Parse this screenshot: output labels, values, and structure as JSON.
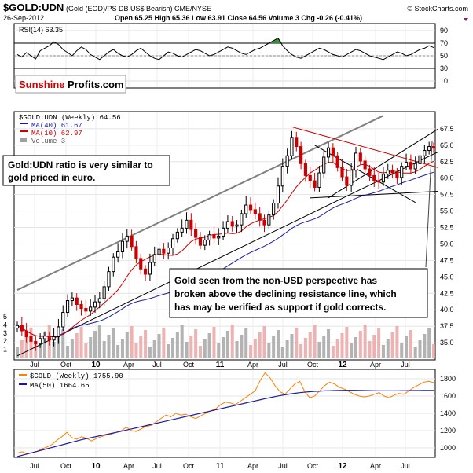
{
  "header": {
    "symbol": "$GOLD:UDN",
    "description": "(Gold (EOD)/PS DB US$ Bearish) CME/NYSE",
    "date": "26-Sep-2012",
    "ohlc": "Open 65.25  High 65.36  Low 63.91  Close 64.56  Volume 3  Chg -0.26 (-0.41%)",
    "watermark": "© StockCharts.com",
    "logo_part1": "Sunshine",
    "logo_part2": "Profits.com"
  },
  "annotations": {
    "ratio_note_line1": "Gold:UDN ratio is very similar to",
    "ratio_note_line2": "gold priced in euro.",
    "breakout_note_line1": "Gold seen from the non-USD perspective has",
    "breakout_note_line2": "broken above the declining resistance line, which",
    "breakout_note_line3": "has may be verified as support if gold corrects."
  },
  "x_axis_labels": [
    "Jul",
    "Oct",
    "10",
    "Apr",
    "Jul",
    "Oct",
    "11",
    "Apr",
    "Jul",
    "Oct",
    "12",
    "Apr",
    "Jul"
  ],
  "chart_data": [
    {
      "type": "line",
      "panel": "RSI",
      "legend": "RSI(14) 63.35",
      "ylim": [
        0,
        100
      ],
      "y_ticks": [
        10,
        30,
        50,
        70,
        90
      ],
      "reference_lines": [
        30,
        70
      ],
      "color": "#000000",
      "overbought_fill": "#3c8c3c",
      "values": [
        52,
        48,
        55,
        50,
        45,
        58,
        62,
        66,
        72,
        68,
        60,
        55,
        50,
        58,
        64,
        60,
        52,
        48,
        44,
        50,
        56,
        60,
        54,
        50,
        48,
        52,
        58,
        62,
        56,
        50,
        46,
        44,
        50,
        56,
        54,
        50,
        48,
        52,
        56,
        60,
        58,
        54,
        50,
        52,
        56,
        60,
        64,
        62,
        58,
        54,
        52,
        56,
        60,
        62,
        66,
        70,
        74,
        78,
        66,
        58,
        52,
        48,
        46,
        50,
        54,
        58,
        62,
        60,
        56,
        52,
        50,
        48,
        52,
        56,
        60,
        58,
        54,
        50,
        48,
        46,
        44,
        48,
        52,
        56,
        54,
        50,
        52,
        56,
        60,
        62,
        66,
        63
      ]
    },
    {
      "type": "candlestick",
      "panel": "Price",
      "series_name": "$GOLD:UDN (Weekly) 64.56",
      "ylim": [
        32.5,
        70
      ],
      "y_ticks": [
        35.0,
        37.5,
        40.0,
        42.5,
        45.0,
        47.5,
        50.0,
        52.5,
        55.0,
        57.5,
        60.0,
        62.5,
        65.0,
        67.5
      ],
      "volume_ticks": [
        1,
        2,
        3,
        4,
        5
      ],
      "up_color": "#000000",
      "down_color": "#cc0000",
      "closes": [
        37.6,
        36.8,
        35.9,
        35.2,
        34.8,
        35.6,
        36.0,
        35.4,
        35.9,
        37.4,
        39.6,
        41.4,
        41.8,
        40.8,
        40.2,
        39.8,
        40.4,
        41.2,
        41.7,
        43.5,
        45.8,
        48.0,
        48.8,
        50.4,
        51.2,
        49.6,
        47.8,
        46.2,
        45.4,
        47.2,
        48.4,
        49.2,
        48.6,
        49.4,
        50.8,
        51.8,
        52.4,
        53.6,
        52.2,
        51.0,
        49.8,
        50.6,
        51.4,
        50.9,
        51.2,
        52.4,
        53.4,
        52.7,
        52.9,
        54.6,
        55.9,
        55.2,
        54.6,
        53.6,
        52.9,
        54.4,
        56.2,
        58.8,
        61.8,
        63.4,
        66.2,
        64.8,
        62.2,
        60.4,
        59.6,
        58.6,
        60.8,
        63.2,
        64.6,
        63.4,
        61.6,
        60.2,
        58.9,
        61.2,
        63.8,
        62.6,
        61.4,
        60.4,
        59.6,
        59.4,
        60.6,
        61.2,
        60.8,
        60.1,
        61.8,
        62.4,
        61.4,
        62.2,
        63.4,
        64.2,
        64.8,
        64.56
      ],
      "ma40": {
        "name": "MA(40) 61.67",
        "color": "#1a1aa0"
      },
      "ma10": {
        "name": "MA(10) 62.97",
        "color": "#cc0000"
      },
      "volume": {
        "name": "Volume 3",
        "color": "#a0a0a0",
        "down_color": "#e8a0a0"
      },
      "trend_lines": [
        {
          "name": "upper channel",
          "color": "#808080",
          "from": [
            0,
            43.0
          ],
          "to": [
            80,
            69.5
          ]
        },
        {
          "name": "lower channel",
          "color": "#000000",
          "from": [
            0,
            33.0
          ],
          "to": [
            92,
            64.0
          ]
        },
        {
          "name": "declining resistance",
          "color": "#cc0000",
          "from": [
            60,
            67.8
          ],
          "to": [
            92,
            61.6
          ]
        },
        {
          "name": "triangle upper",
          "color": "#000000",
          "from": [
            65,
            65.0
          ],
          "to": [
            87,
            56.3
          ]
        },
        {
          "name": "triangle rising",
          "color": "#000000",
          "from": [
            68,
            57.0
          ],
          "to": [
            92,
            67.5
          ]
        },
        {
          "name": "support",
          "color": "#000000",
          "from": [
            64,
            57.0
          ],
          "to": [
            92,
            58.0
          ]
        }
      ]
    },
    {
      "type": "line",
      "panel": "Gold",
      "series": [
        {
          "name": "$GOLD (Weekly) 1755.90",
          "color": "#ff8000",
          "values": [
            940,
            955,
            930,
            945,
            960,
            990,
            1010,
            1040,
            1090,
            1130,
            1180,
            1120,
            1100,
            1130,
            1110,
            1080,
            1110,
            1130,
            1150,
            1160,
            1180,
            1200,
            1240,
            1200,
            1190,
            1220,
            1250,
            1260,
            1300,
            1340,
            1380,
            1360,
            1400,
            1380,
            1390,
            1360,
            1340,
            1370,
            1400,
            1430,
            1450,
            1500,
            1530,
            1520,
            1500,
            1540,
            1580,
            1620,
            1660,
            1780,
            1870,
            1810,
            1720,
            1650,
            1620,
            1680,
            1740,
            1770,
            1650,
            1580,
            1600,
            1660,
            1720,
            1760,
            1740,
            1700,
            1680,
            1650,
            1620,
            1600,
            1590,
            1600,
            1620,
            1640,
            1600,
            1580,
            1610,
            1630,
            1620,
            1660,
            1700,
            1730,
            1760,
            1770,
            1755.9
          ]
        },
        {
          "name": "MA(50) 1664.65",
          "color": "#1a1aa0",
          "values": [
            900,
            915,
            930,
            945,
            960,
            975,
            990,
            1005,
            1020,
            1035,
            1050,
            1065,
            1080,
            1095,
            1108,
            1120,
            1132,
            1144,
            1156,
            1168,
            1180,
            1193,
            1206,
            1219,
            1232,
            1245,
            1258,
            1271,
            1284,
            1297,
            1310,
            1323,
            1336,
            1349,
            1362,
            1375,
            1388,
            1401,
            1414,
            1427,
            1440,
            1453,
            1466,
            1479,
            1492,
            1505,
            1518,
            1531,
            1544,
            1557,
            1570,
            1582,
            1594,
            1605,
            1615,
            1624,
            1632,
            1639,
            1645,
            1650,
            1654,
            1657,
            1660,
            1662,
            1664,
            1665,
            1666,
            1666,
            1666,
            1665,
            1664,
            1663,
            1662,
            1661,
            1660,
            1660,
            1660,
            1661,
            1662,
            1663,
            1664,
            1664,
            1665,
            1665,
            1664.65
          ]
        }
      ],
      "ylim": [
        900,
        1900
      ],
      "y_ticks": [
        1000,
        1200,
        1400,
        1600,
        1800
      ]
    }
  ]
}
